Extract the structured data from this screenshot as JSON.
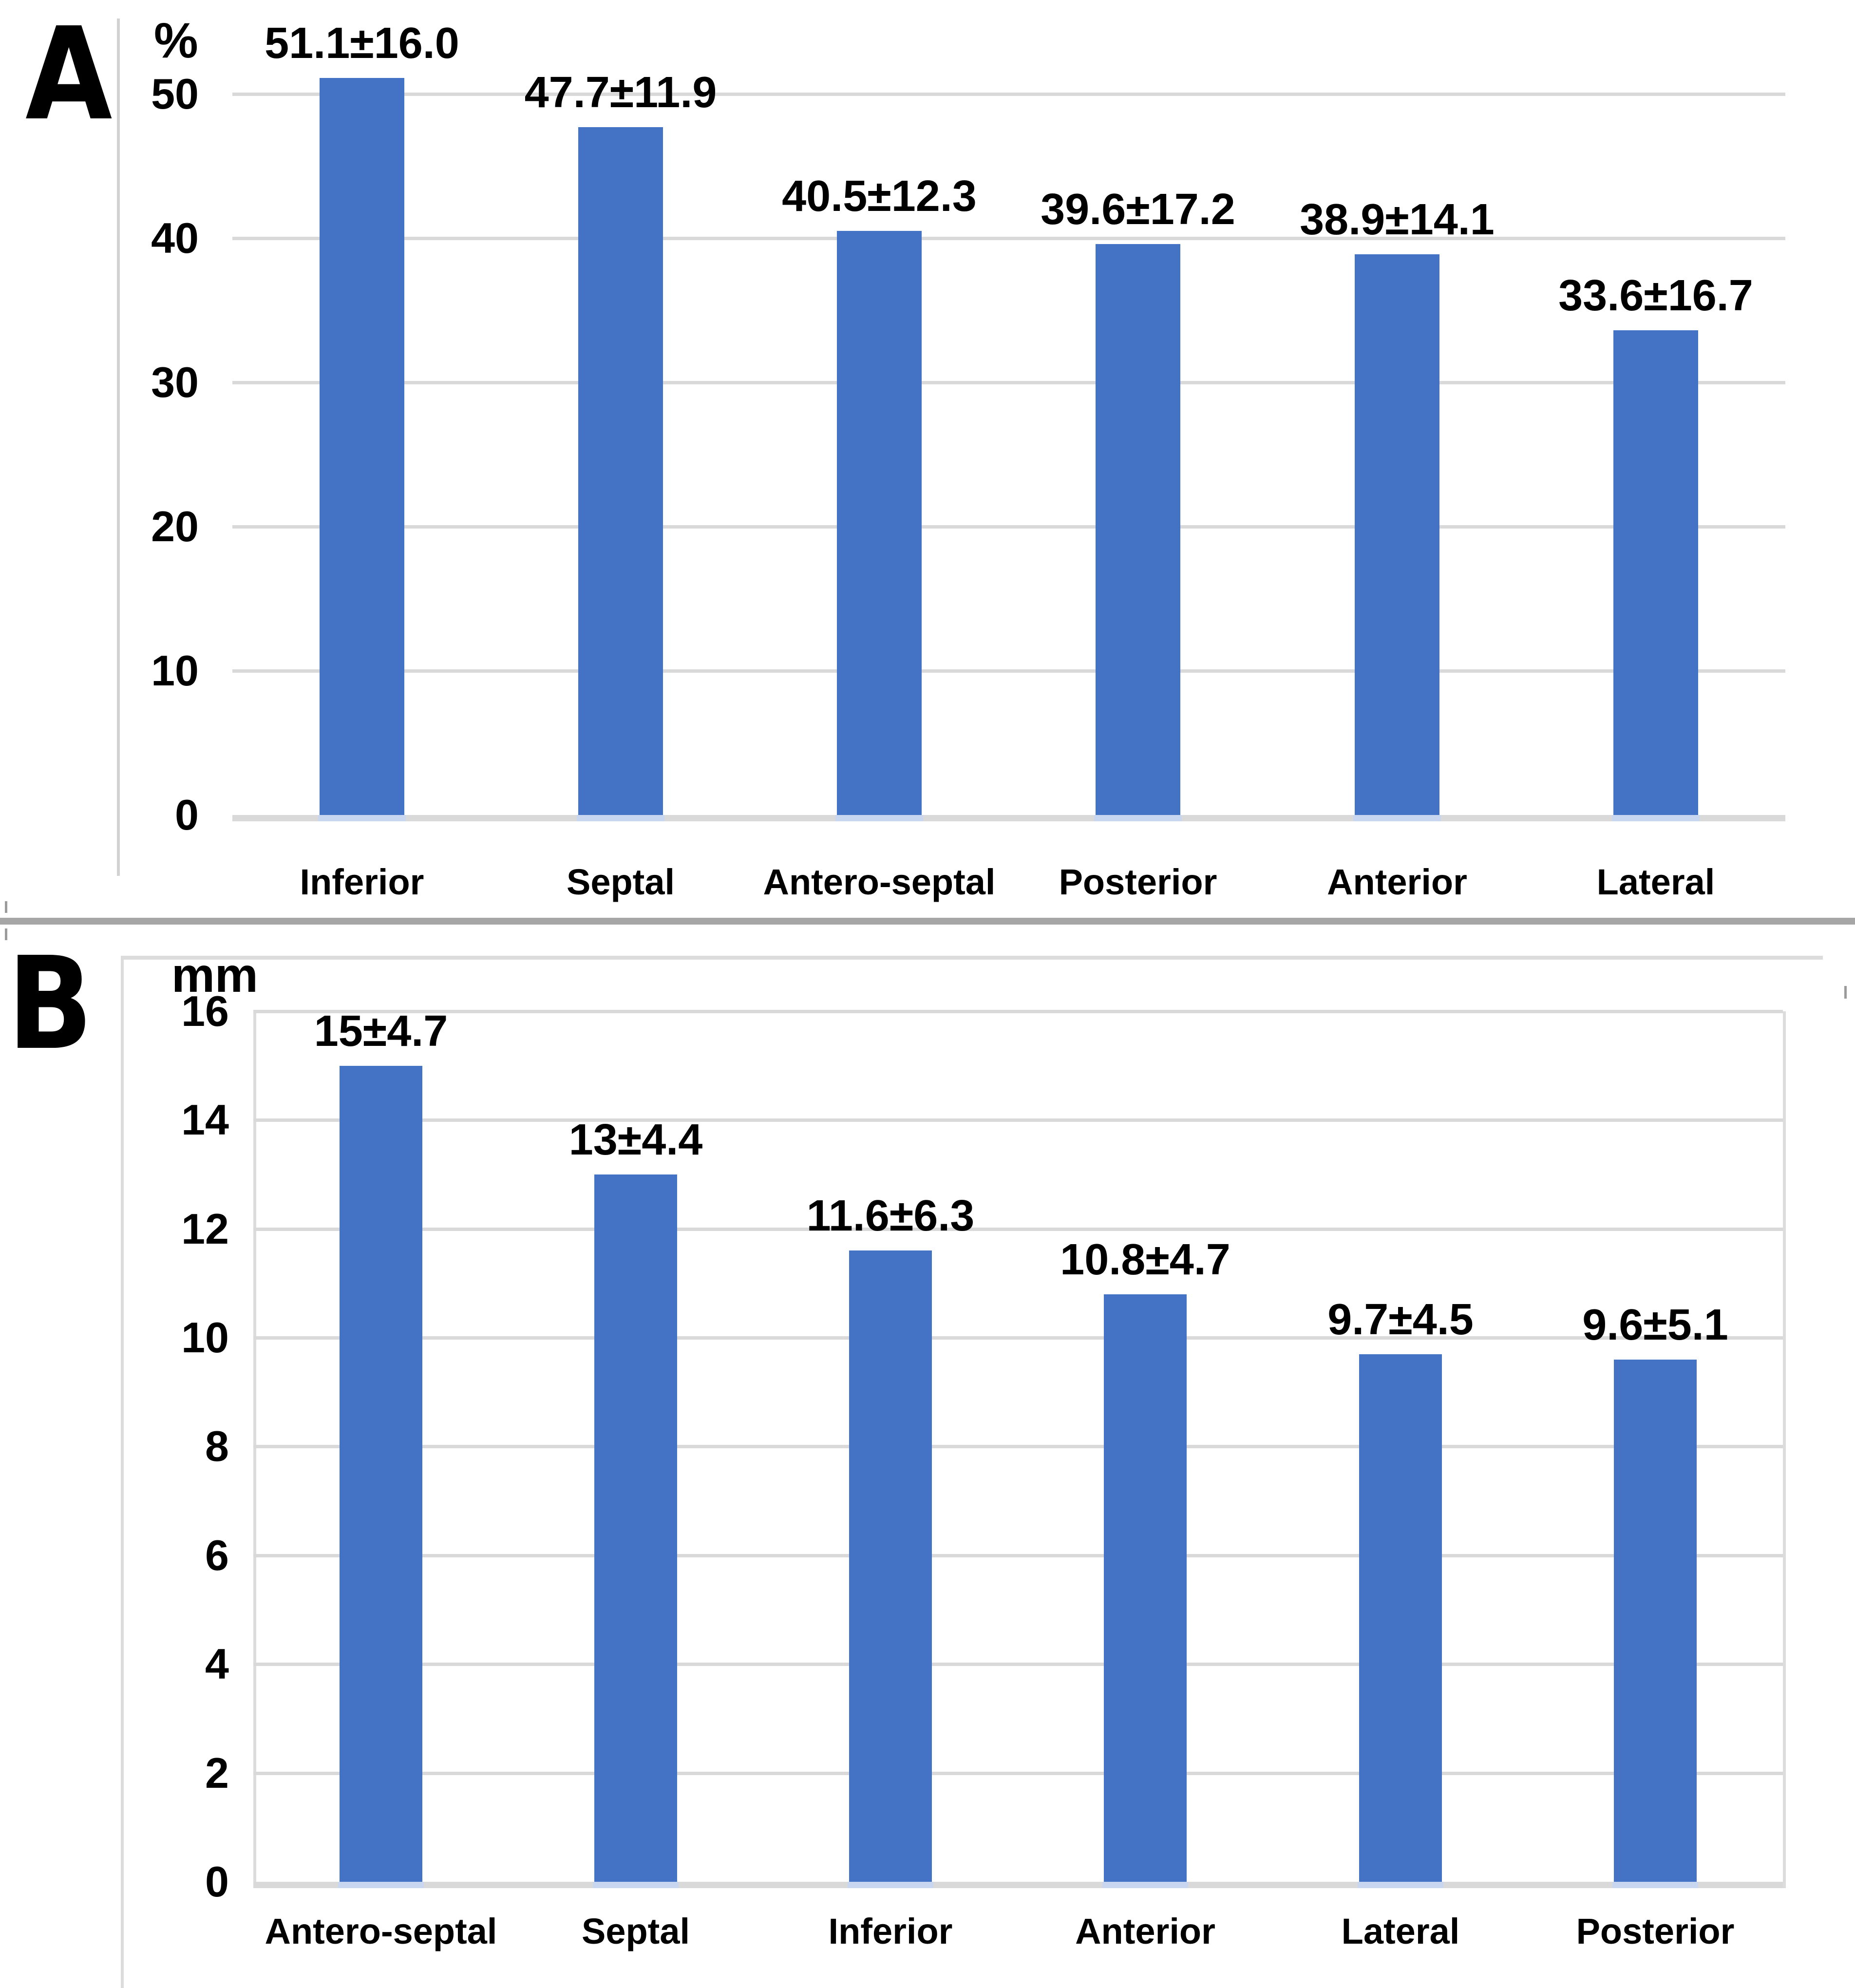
{
  "panels": [
    {
      "letter": "A"
    },
    {
      "letter": "B"
    }
  ],
  "chart_data": [
    {
      "type": "bar",
      "panel": "A",
      "title": "",
      "xlabel": "",
      "ylabel": "%",
      "categories": [
        "Inferior",
        "Septal",
        "Antero-septal",
        "Posterior",
        "Anterior",
        "Lateral"
      ],
      "values": [
        51.1,
        47.7,
        40.5,
        39.6,
        38.9,
        33.6
      ],
      "data_labels": [
        "51.1±16.0",
        "47.7±11.9",
        "40.5±12.3",
        "39.6±17.2",
        "38.9±14.1",
        "33.6±16.7"
      ],
      "y_ticks": [
        0,
        10,
        20,
        30,
        40,
        50
      ],
      "ylim": [
        0,
        56
      ],
      "grid": true,
      "legend": "none",
      "bar_color": "#4472C4"
    },
    {
      "type": "bar",
      "panel": "B",
      "title": "",
      "xlabel": "",
      "ylabel": "mm",
      "categories": [
        "Antero-septal",
        "Septal",
        "Inferior",
        "Anterior",
        "Lateral",
        "Posterior"
      ],
      "values": [
        15,
        13,
        11.6,
        10.8,
        9.7,
        9.6
      ],
      "data_labels": [
        "15±4.7",
        "13±4.4",
        "11.6±6.3",
        "10.8±4.7",
        "9.7±4.5",
        "9.6±5.1"
      ],
      "y_ticks": [
        0,
        2,
        4,
        6,
        8,
        10,
        12,
        14,
        16
      ],
      "ylim": [
        0,
        16
      ],
      "grid": true,
      "legend": "none",
      "bar_color": "#4472C4"
    }
  ],
  "colors": {
    "bar": "#4472C4",
    "bar_footer": "#C9D6EF",
    "gridline": "#D9D9D9",
    "axis_line": "#D2D2D2",
    "panel_box": "#DCDCDC",
    "separator": "#A6A6A6",
    "text": "#000000"
  }
}
